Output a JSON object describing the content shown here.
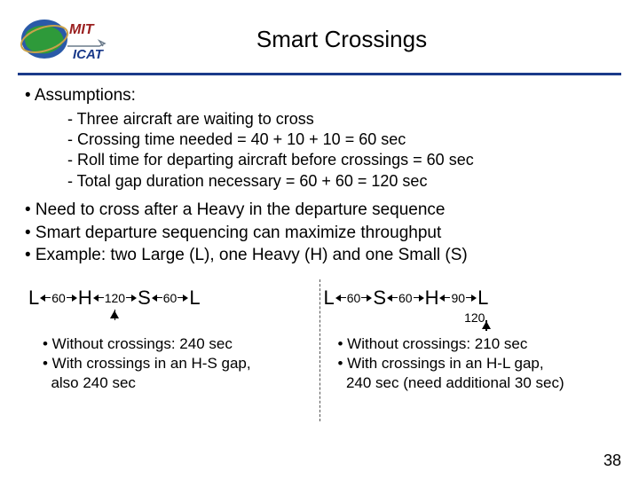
{
  "title": "Smart Crossings",
  "assumptions_label": "• Assumptions:",
  "sub": {
    "a": "- Three aircraft are waiting to cross",
    "b": "- Crossing time needed = 40 + 10 + 10 = 60 sec",
    "c": "- Roll time for departing aircraft before crossings = 60 sec",
    "d": "- Total gap duration necessary = 60 + 60 = 120 sec"
  },
  "bullets": {
    "a": "• Need to cross after a Heavy in the departure sequence",
    "b": "• Smart departure sequencing can maximize throughput",
    "c": "• Example: two Large (L), one Heavy (H) and one Small (S)"
  },
  "left": {
    "seq": [
      "L",
      "H",
      "S",
      "L"
    ],
    "gaps": [
      "60",
      "120",
      "60"
    ],
    "arrow_gap_index": 1,
    "n1": "• Without crossings: 240 sec",
    "n2": "• With crossings in an H-S gap,",
    "n3": "  also 240 sec"
  },
  "right": {
    "seq": [
      "L",
      "S",
      "H",
      "L"
    ],
    "gaps": [
      "60",
      "60",
      "90"
    ],
    "extra_label": "120",
    "n1": "• Without crossings: 210 sec",
    "n2": "• With crossings in an H-L gap,",
    "n3": "  240 sec (need additional 30 sec)"
  },
  "page_number": "38",
  "colors": {
    "rule": "#1a3a8a",
    "text": "#000000"
  }
}
